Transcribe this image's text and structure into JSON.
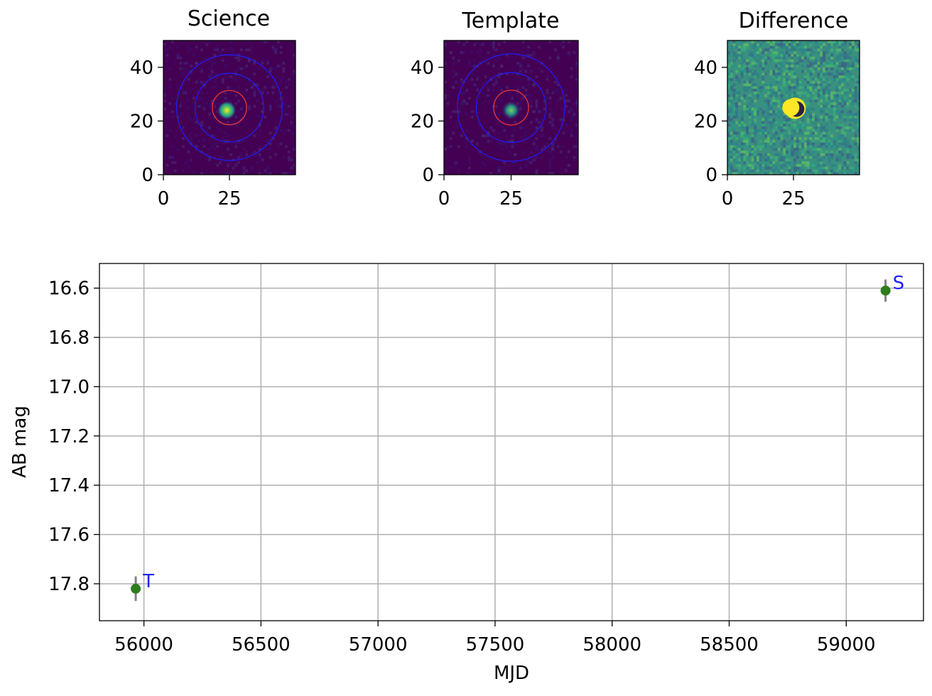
{
  "colors": {
    "viridis_low": "#440154",
    "viridis_mid": "#21918c",
    "viridis_high": "#fde725",
    "diff_bg": "#3b8f7f",
    "aperture_inner": "#ff3b30",
    "aperture_annulus": "#1f1fff",
    "point_color": "#2e7d1e",
    "errorbar_color": "#808080",
    "label_color": "#1f1fff",
    "grid_color": "#b0b0b0"
  },
  "chart_data": [
    {
      "type": "heatmap",
      "id": "science",
      "title": "Science",
      "xlim": [
        0,
        50
      ],
      "ylim": [
        0,
        50
      ],
      "xticks": [
        0,
        25
      ],
      "yticks": [
        0,
        20,
        40
      ],
      "source": {
        "x": 24,
        "y": 24
      },
      "aperture_radius": 6.5,
      "annulus_radii": [
        13,
        20
      ]
    },
    {
      "type": "heatmap",
      "id": "template",
      "title": "Template",
      "xlim": [
        0,
        50
      ],
      "ylim": [
        0,
        50
      ],
      "xticks": [
        0,
        25
      ],
      "yticks": [
        0,
        20,
        40
      ],
      "source": {
        "x": 25,
        "y": 24
      },
      "aperture_radius": 6.5,
      "annulus_radii": [
        13,
        20
      ]
    },
    {
      "type": "heatmap",
      "id": "difference",
      "title": "Difference",
      "xlim": [
        0,
        50
      ],
      "ylim": [
        0,
        50
      ],
      "xticks": [
        0,
        25
      ],
      "yticks": [
        0,
        20,
        40
      ],
      "source": {
        "x": 24,
        "y": 25
      }
    },
    {
      "type": "scatter",
      "id": "lightcurve",
      "title": "",
      "xlabel": "MJD",
      "ylabel": "AB mag",
      "xlim": [
        55810,
        59330
      ],
      "ylim": [
        17.95,
        16.5
      ],
      "xticks": [
        56000,
        56500,
        57000,
        57500,
        58000,
        58500,
        59000
      ],
      "yticks": [
        16.6,
        16.8,
        17.0,
        17.2,
        17.4,
        17.6,
        17.8
      ],
      "ytick_labels": [
        "16.6",
        "16.8",
        "17.0",
        "17.2",
        "17.4",
        "17.6",
        "17.8"
      ],
      "grid": true,
      "points": [
        {
          "x": 55965,
          "y": 17.82,
          "yerr": 0.05,
          "label": "T"
        },
        {
          "x": 59168,
          "y": 16.61,
          "yerr": 0.045,
          "label": "S"
        }
      ]
    }
  ]
}
